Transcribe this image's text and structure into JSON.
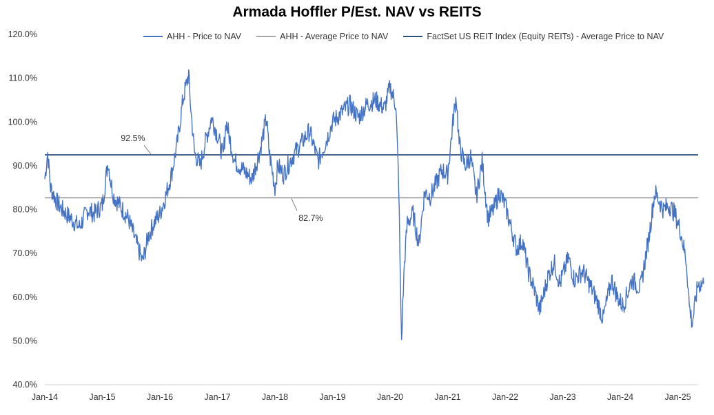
{
  "chart_data": {
    "type": "line",
    "title": "Armada Hoffler P/Est. NAV vs REITS",
    "xlabel": "",
    "ylabel": "",
    "ylim": [
      40,
      120
    ],
    "y_ticks": [
      "40.0%",
      "50.0%",
      "60.0%",
      "70.0%",
      "80.0%",
      "90.0%",
      "100.0%",
      "110.0%",
      "120.0%"
    ],
    "x_ticks": [
      "Jan-14",
      "Jan-15",
      "Jan-16",
      "Jan-17",
      "Jan-18",
      "Jan-19",
      "Jan-20",
      "Jan-21",
      "Jan-22",
      "Jan-23",
      "Jan-24",
      "Jan-25"
    ],
    "grid": false,
    "legend_position": "top",
    "series": [
      {
        "name": "AHH - Price to NAV",
        "color": "#4472C4",
        "x": [
          2014.0,
          2014.05,
          2014.1,
          2014.2,
          2014.3,
          2014.45,
          2014.6,
          2014.75,
          2014.85,
          2015.0,
          2015.1,
          2015.15,
          2015.2,
          2015.3,
          2015.45,
          2015.55,
          2015.65,
          2015.7,
          2015.8,
          2015.9,
          2016.0,
          2016.1,
          2016.2,
          2016.3,
          2016.4,
          2016.5,
          2016.52,
          2016.6,
          2016.7,
          2016.8,
          2016.9,
          2017.0,
          2017.1,
          2017.15,
          2017.3,
          2017.45,
          2017.6,
          2017.75,
          2017.85,
          2017.9,
          2018.0,
          2018.05,
          2018.15,
          2018.3,
          2018.45,
          2018.6,
          2018.75,
          2018.9,
          2019.0,
          2019.15,
          2019.3,
          2019.45,
          2019.6,
          2019.75,
          2019.9,
          2020.0,
          2020.1,
          2020.15,
          2020.18,
          2020.2,
          2020.22,
          2020.25,
          2020.3,
          2020.4,
          2020.5,
          2020.6,
          2020.7,
          2020.8,
          2020.9,
          2021.0,
          2021.1,
          2021.15,
          2021.2,
          2021.3,
          2021.4,
          2021.5,
          2021.6,
          2021.7,
          2021.8,
          2021.9,
          2022.0,
          2022.1,
          2022.2,
          2022.3,
          2022.4,
          2022.5,
          2022.6,
          2022.75,
          2022.85,
          2022.95,
          2023.1,
          2023.2,
          2023.35,
          2023.5,
          2023.6,
          2023.7,
          2023.85,
          2023.95,
          2024.05,
          2024.2,
          2024.35,
          2024.5,
          2024.6,
          2024.75,
          2024.85,
          2024.95,
          2025.05,
          2025.15,
          2025.2,
          2025.25,
          2025.35,
          2025.45
        ],
        "values": [
          87,
          93,
          85,
          82,
          80,
          78,
          76,
          80,
          79,
          81,
          91,
          86,
          83,
          81,
          78,
          74,
          70,
          68,
          74,
          77,
          79,
          83,
          88,
          95,
          105,
          111,
          106,
          93,
          90,
          96,
          101,
          97,
          92,
          100,
          91,
          89,
          87,
          94,
          101,
          93,
          85,
          90,
          88,
          92,
          95,
          98,
          91,
          96,
          100,
          102,
          104,
          101,
          104,
          105,
          103,
          108,
          104,
          86,
          62,
          50,
          58,
          68,
          77,
          79,
          72,
          84,
          83,
          86,
          89,
          88,
          101,
          106,
          95,
          90,
          92,
          83,
          91,
          78,
          80,
          84,
          81,
          76,
          71,
          73,
          66,
          62,
          57,
          65,
          68,
          63,
          69,
          64,
          66,
          62,
          59,
          55,
          64,
          60,
          58,
          64,
          62,
          74,
          84,
          80,
          81,
          79,
          75,
          68,
          58,
          54,
          63,
          63
        ]
      },
      {
        "name": "AHH - Average Price to NAV",
        "color": "#A5A5A5",
        "constant": 82.7
      },
      {
        "name": "FactSet US REIT Index (Equity REITs) - Average Price to NAV",
        "color": "#2F4E7A",
        "constant": 92.5
      }
    ],
    "annotations": [
      {
        "text": "92.5%",
        "x": 2015.7,
        "y": 95.0
      },
      {
        "text": "82.7%",
        "x": 2018.55,
        "y": 78.0
      }
    ]
  }
}
